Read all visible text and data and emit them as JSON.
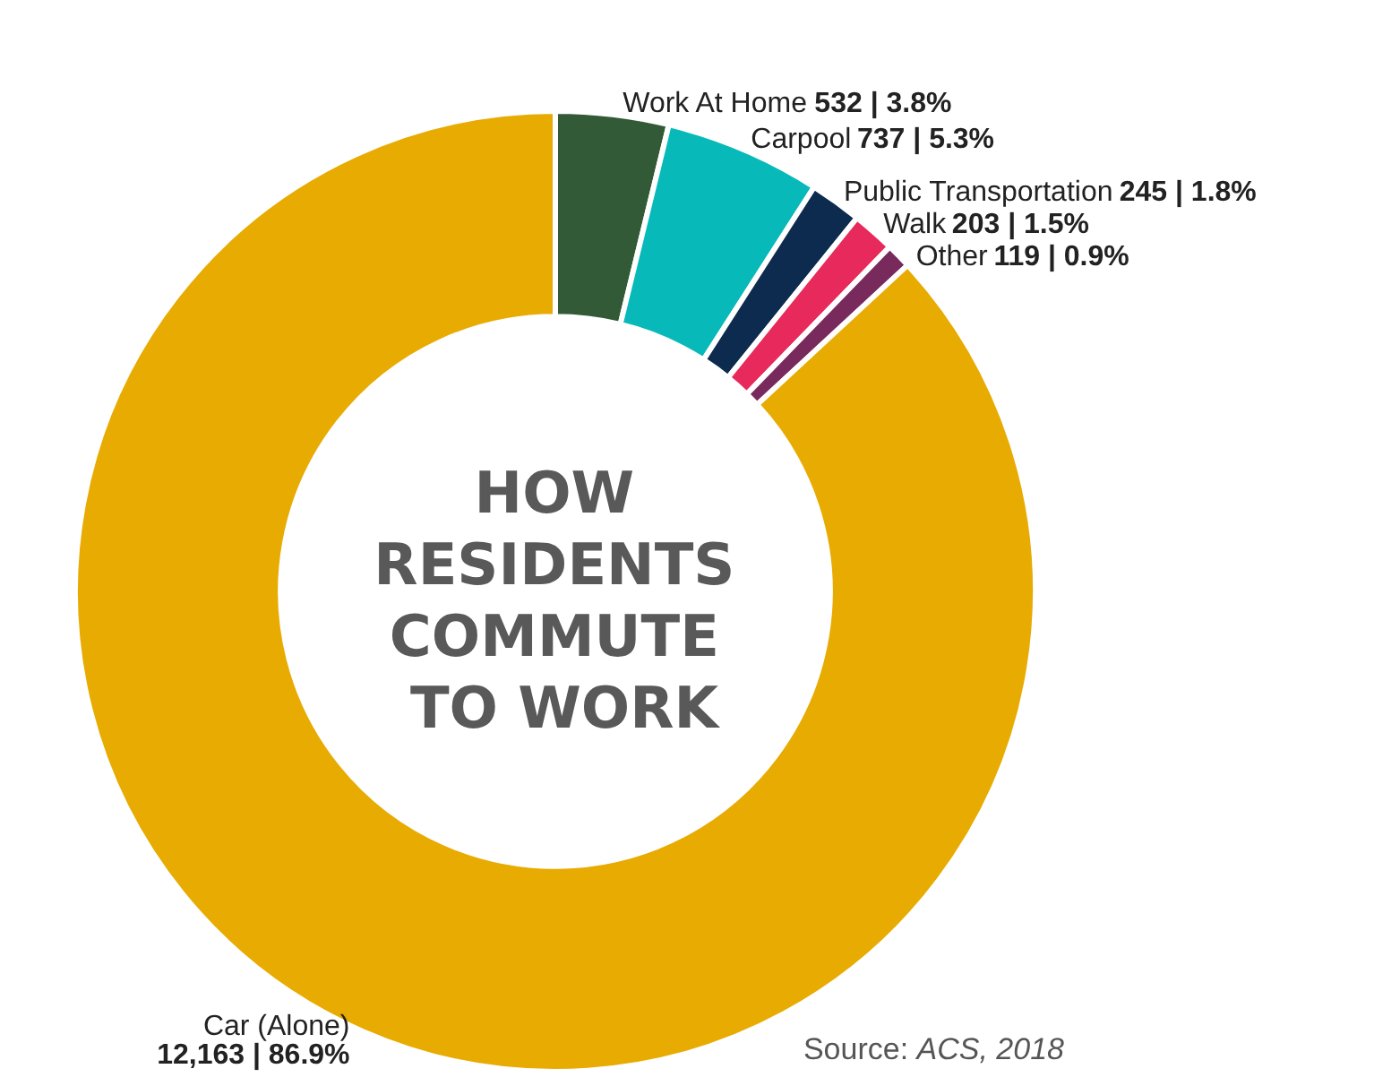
{
  "chart_data": {
    "type": "donut",
    "title": "HOW RESIDENTS COMMUTE TO WORK",
    "categories": [
      "Work At Home",
      "Carpool",
      "Public Transportation",
      "Walk",
      "Other",
      "Car (Alone)"
    ],
    "values": [
      532,
      737,
      245,
      203,
      119,
      12163
    ],
    "value_labels": [
      "532 | 3.8%",
      "737 | 5.3%",
      "245 | 1.8%",
      "203 | 1.5%",
      "119 | 0.9%",
      "12,163 | 86.9%"
    ],
    "colors": [
      "#325a36",
      "#08b9b9",
      "#0c2b4f",
      "#e8295b",
      "#782a5c",
      "#e8ab02"
    ],
    "annotations": [
      "Source: ACS, 2018"
    ],
    "legend": false
  }
}
